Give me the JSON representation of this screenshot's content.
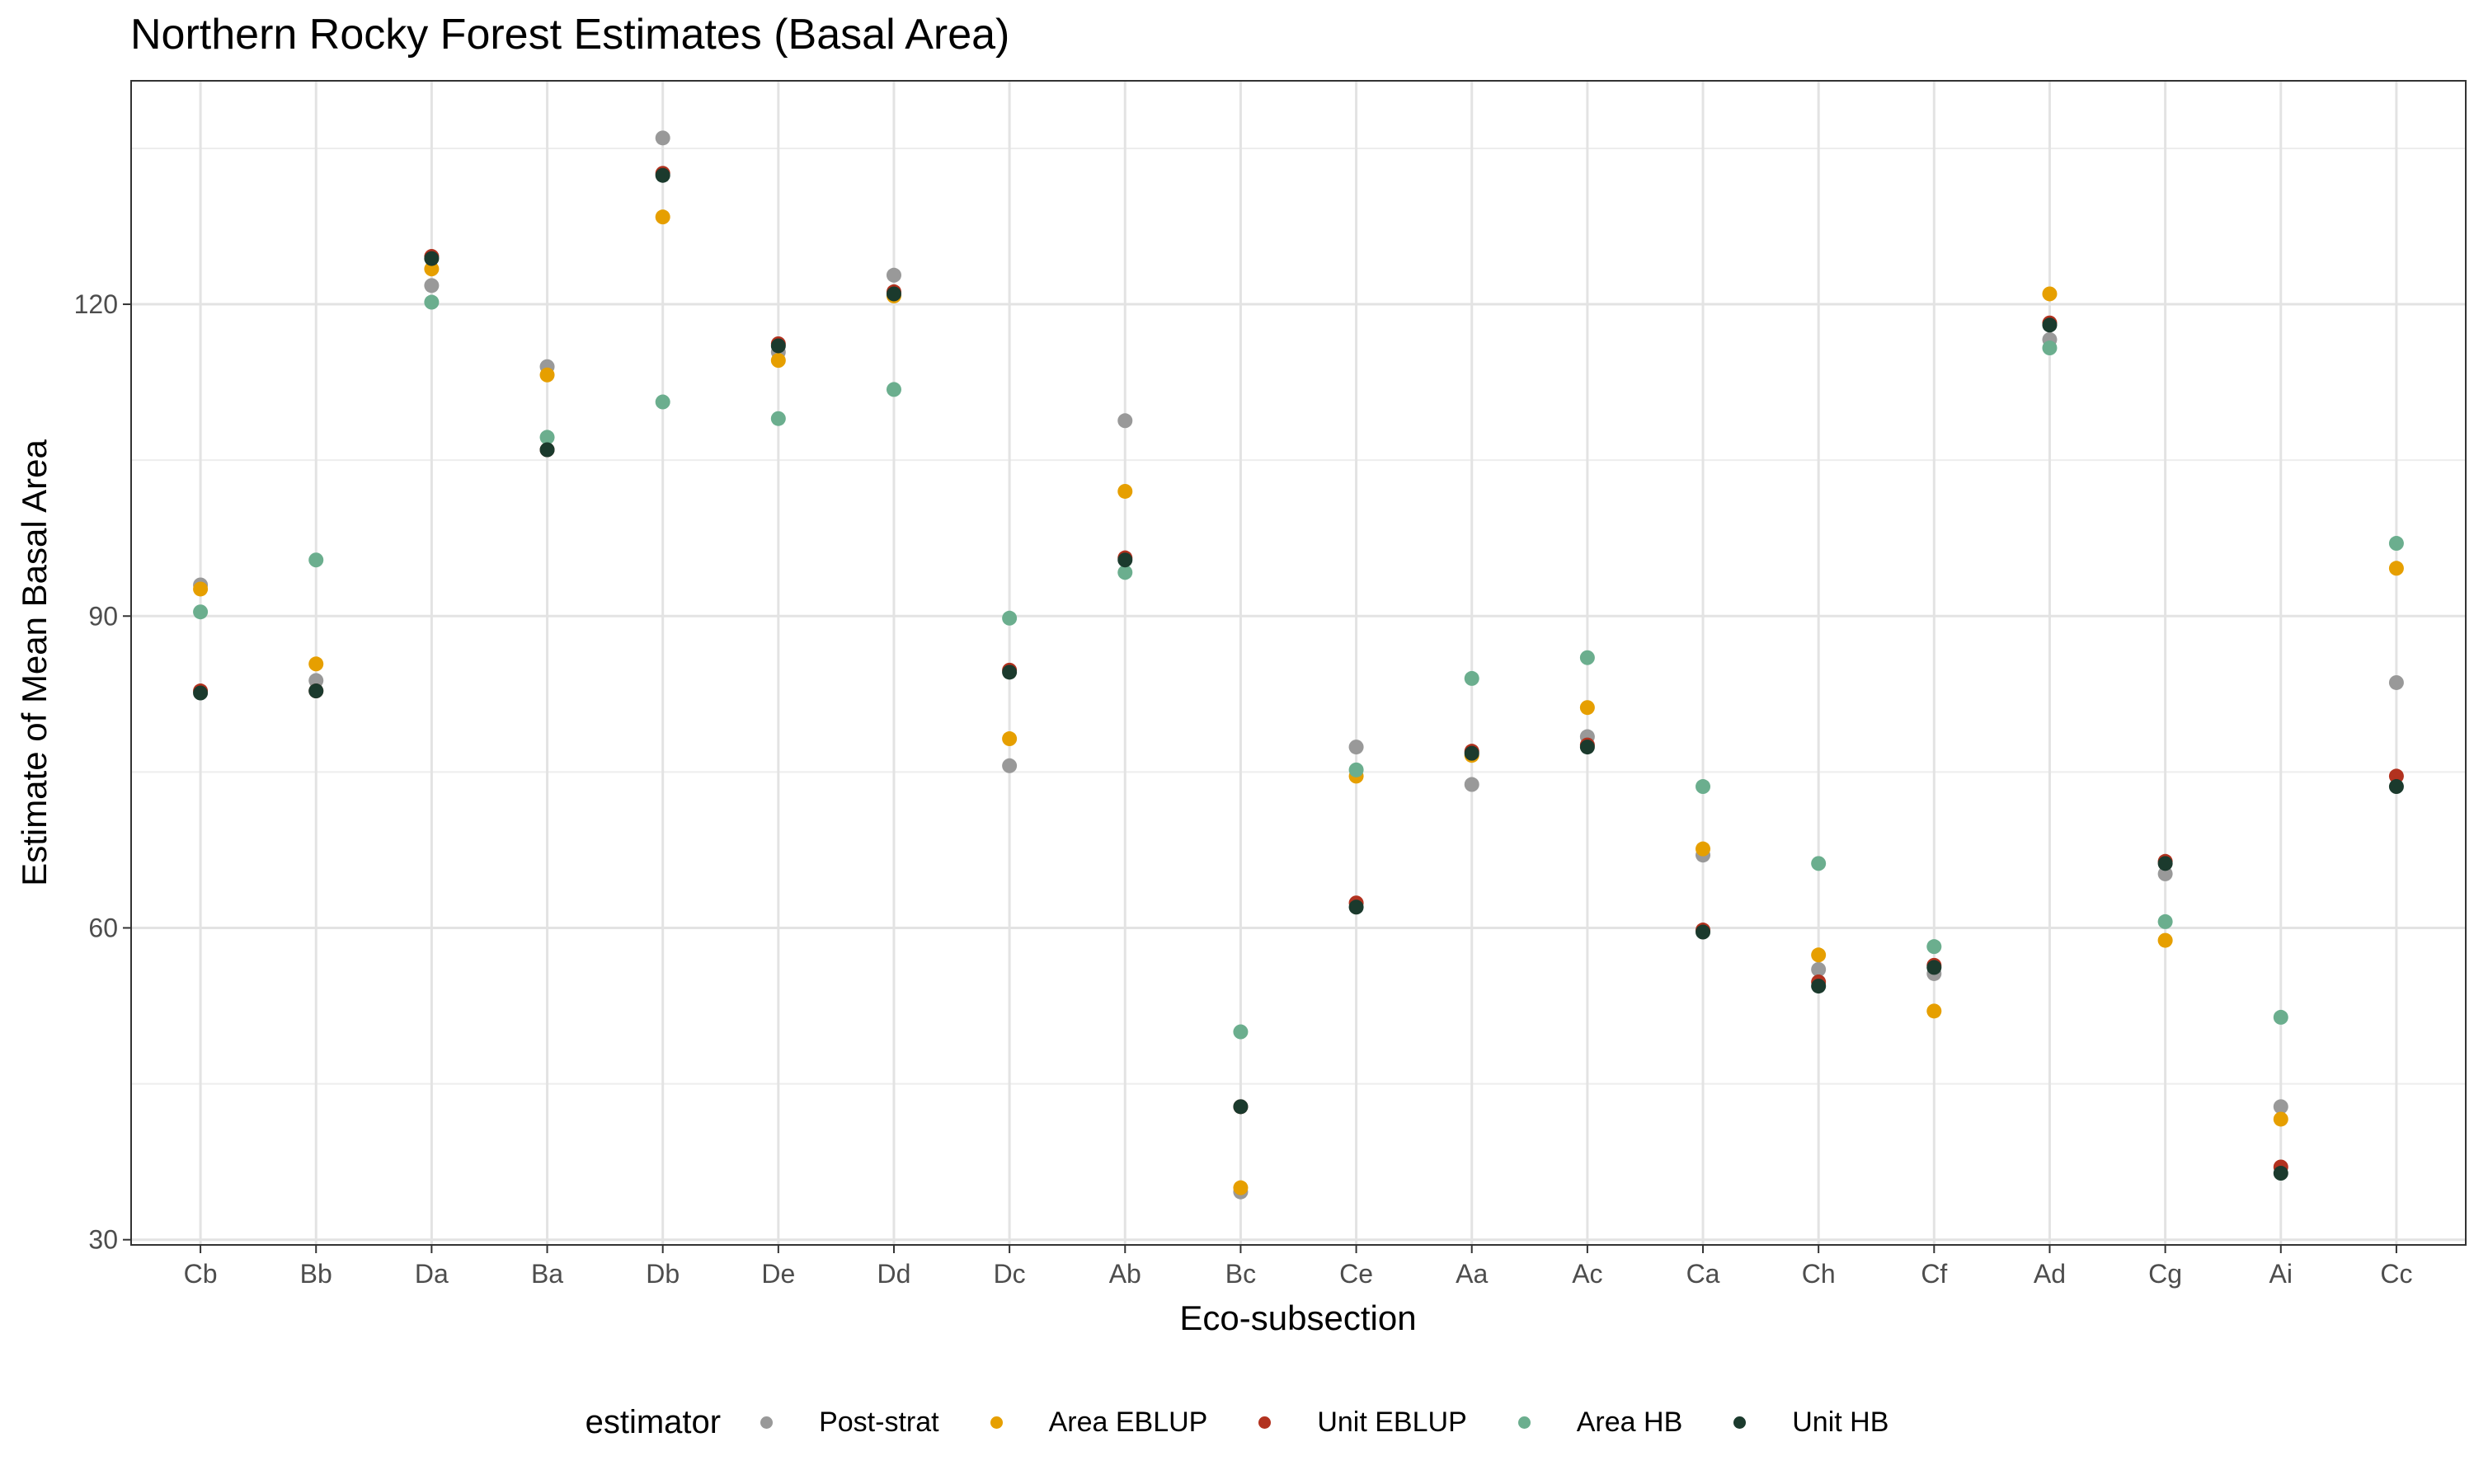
{
  "chart_data": {
    "type": "scatter",
    "title": "Northern Rocky Forest Estimates (Basal Area)",
    "xlabel": "Eco-subsection",
    "ylabel": "Estimate of Mean Basal Area",
    "ylim": [
      29.5,
      141.5
    ],
    "yticks": [
      30,
      60,
      90,
      120
    ],
    "grid": true,
    "legend_position": "bottom",
    "legend_title": "estimator",
    "categories": [
      "Cb",
      "Bb",
      "Da",
      "Ba",
      "Db",
      "De",
      "Dd",
      "Dc",
      "Ab",
      "Bc",
      "Ce",
      "Aa",
      "Ac",
      "Ca",
      "Ch",
      "Cf",
      "Ad",
      "Cg",
      "Ai",
      "Cc"
    ],
    "series": [
      {
        "name": "Post-strat",
        "color": "#999999",
        "values": [
          93.0,
          83.8,
          121.8,
          114.0,
          136.0,
          115.4,
          122.8,
          75.6,
          108.8,
          34.6,
          77.4,
          73.8,
          78.4,
          67.0,
          56.0,
          55.6,
          116.6,
          65.2,
          42.8,
          83.6
        ]
      },
      {
        "name": "Area EBLUP",
        "color": "#E69F00",
        "values": [
          92.6,
          85.4,
          123.4,
          113.2,
          128.4,
          114.6,
          120.8,
          78.2,
          102.0,
          35.0,
          74.6,
          76.6,
          81.2,
          67.6,
          57.4,
          52.0,
          121.0,
          58.8,
          41.6,
          94.6
        ]
      },
      {
        "name": "Unit EBLUP",
        "color": "#B2321F",
        "values": [
          82.8,
          82.8,
          124.6,
          106.0,
          132.6,
          116.2,
          121.2,
          84.8,
          95.6,
          42.8,
          62.4,
          77.0,
          77.6,
          59.8,
          54.8,
          56.4,
          118.2,
          66.4,
          37.0,
          74.6
        ]
      },
      {
        "name": "Area HB",
        "color": "#6BAE8E",
        "values": [
          90.4,
          95.4,
          120.2,
          107.2,
          110.6,
          109.0,
          111.8,
          89.8,
          94.2,
          50.0,
          75.2,
          84.0,
          86.0,
          73.6,
          66.2,
          58.2,
          115.8,
          60.6,
          51.4,
          97.0
        ]
      },
      {
        "name": "Unit HB",
        "color": "#1B3A2D",
        "values": [
          82.6,
          82.8,
          124.4,
          106.0,
          132.4,
          116.0,
          121.0,
          84.6,
          95.4,
          42.8,
          62.0,
          76.8,
          77.4,
          59.6,
          54.4,
          56.2,
          118.0,
          66.2,
          36.4,
          73.6
        ]
      }
    ]
  }
}
